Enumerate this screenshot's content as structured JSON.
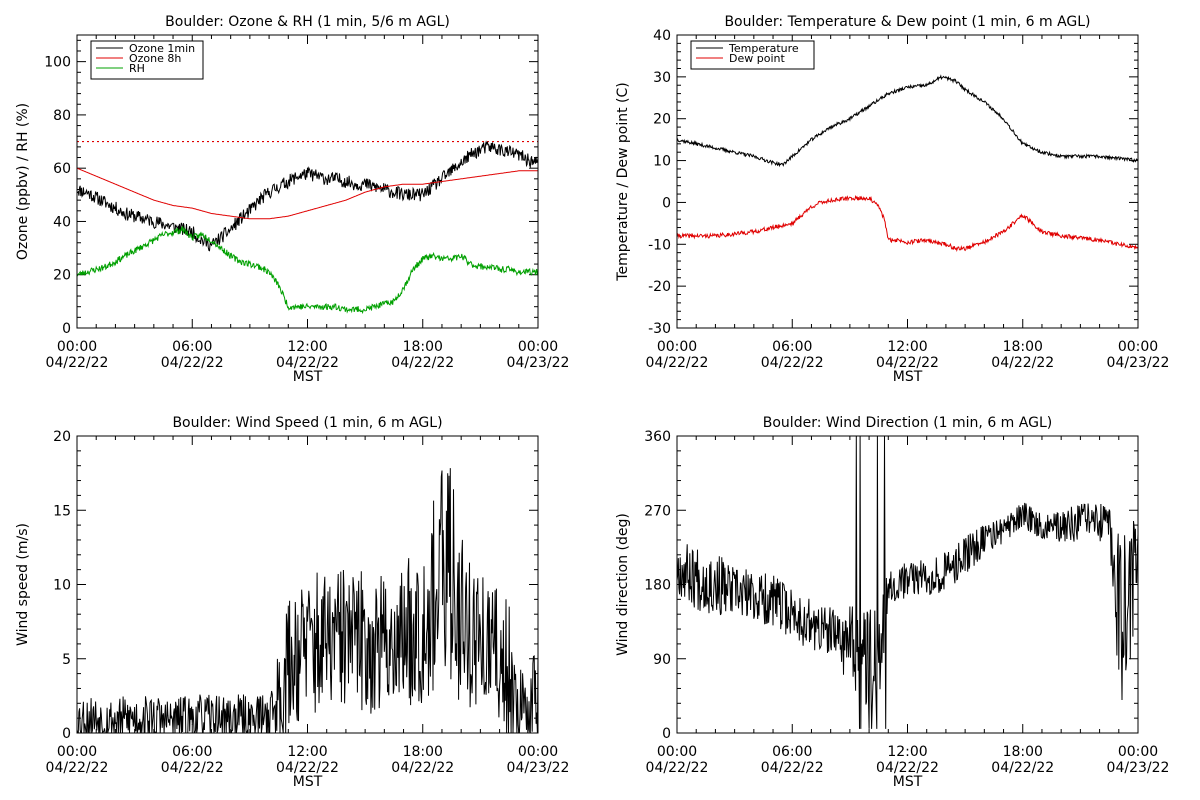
{
  "colors": {
    "black": "#000000",
    "red": "#e00000",
    "green": "#00a000"
  },
  "chart_data": [
    {
      "type": "line",
      "title": "Boulder: Ozone & RH (1 min, 5/6 m AGL)",
      "xlabel": "MST",
      "ylabel": "Ozone (ppbv) / RH (%)",
      "xlim": [
        0,
        24
      ],
      "ylim": [
        0,
        110
      ],
      "yticks": [
        0,
        20,
        40,
        60,
        80,
        100
      ],
      "xticks": [
        {
          "t": 0,
          "time": "00:00",
          "date": "04/22/22"
        },
        {
          "t": 6,
          "time": "06:00",
          "date": "04/22/22"
        },
        {
          "t": 12,
          "time": "12:00",
          "date": "04/22/22"
        },
        {
          "t": 18,
          "time": "18:00",
          "date": "04/22/22"
        },
        {
          "t": 24,
          "time": "00:00",
          "date": "04/23/22"
        }
      ],
      "legend": "top-left",
      "reference_line": {
        "y": 70,
        "color": "#e00000",
        "style": "dotted"
      },
      "series": [
        {
          "name": "Ozone 1min",
          "color": "#000000",
          "noise": 2.5,
          "seed": 11,
          "x": [
            0,
            0.5,
            1,
            1.5,
            2,
            2.5,
            3,
            3.5,
            4,
            4.5,
            5,
            5.5,
            6,
            6.5,
            7,
            7.5,
            8,
            8.5,
            9,
            9.5,
            10,
            10.5,
            11,
            11.5,
            12,
            12.5,
            13,
            13.5,
            14,
            14.5,
            15,
            15.5,
            16,
            16.5,
            17,
            17.5,
            18,
            18.5,
            19,
            19.5,
            20,
            20.5,
            21,
            21.5,
            22,
            22.5,
            23,
            23.5,
            24
          ],
          "y": [
            52,
            51,
            49,
            47,
            45,
            43,
            42,
            41,
            40,
            39,
            38,
            37,
            36,
            33,
            31,
            34,
            37,
            41,
            44,
            48,
            51,
            53,
            55,
            57,
            58,
            57,
            56,
            56,
            55,
            54,
            54,
            53,
            52,
            51,
            50,
            50,
            50,
            53,
            56,
            59,
            62,
            65,
            67,
            68,
            67,
            66,
            65,
            63,
            62
          ]
        },
        {
          "name": "Ozone 8h",
          "color": "#e00000",
          "noise": 0,
          "seed": 0,
          "x": [
            0,
            1,
            2,
            3,
            4,
            5,
            6,
            7,
            8,
            9,
            10,
            11,
            12,
            13,
            14,
            15,
            16,
            17,
            18,
            19,
            20,
            21,
            22,
            23,
            24
          ],
          "y": [
            60,
            57,
            54,
            51,
            48,
            46,
            45,
            43,
            42,
            41,
            41,
            42,
            44,
            46,
            48,
            51,
            53,
            54,
            54,
            55,
            56,
            57,
            58,
            59,
            59
          ]
        },
        {
          "name": "RH",
          "color": "#00a000",
          "noise": 1.2,
          "seed": 23,
          "x": [
            0,
            0.5,
            1,
            1.5,
            2,
            2.5,
            3,
            3.5,
            4,
            4.5,
            5,
            5.5,
            6,
            6.5,
            7,
            7.5,
            8,
            8.5,
            9,
            9.5,
            10,
            10.5,
            11,
            11.5,
            12,
            12.5,
            13,
            13.5,
            14,
            14.5,
            15,
            15.5,
            16,
            16.5,
            17,
            17.5,
            18,
            18.5,
            19,
            19.5,
            20,
            20.5,
            21,
            21.5,
            22,
            22.5,
            23,
            23.5,
            24
          ],
          "y": [
            20,
            21,
            22,
            23,
            25,
            27,
            29,
            31,
            33,
            35,
            36,
            37,
            34,
            35,
            33,
            30,
            27,
            25,
            24,
            23,
            21,
            16,
            8,
            8,
            8,
            8,
            8,
            8,
            7,
            7,
            7,
            8,
            9,
            10,
            15,
            22,
            26,
            27,
            26,
            26,
            27,
            24,
            23,
            23,
            22,
            22,
            21,
            21,
            21
          ]
        }
      ]
    },
    {
      "type": "line",
      "title": "Boulder: Temperature & Dew point (1 min, 6 m AGL)",
      "xlabel": "MST",
      "ylabel": "Temperature / Dew point (C)",
      "xlim": [
        0,
        24
      ],
      "ylim": [
        -30,
        40
      ],
      "yticks": [
        -30,
        -20,
        -10,
        0,
        10,
        20,
        30,
        40
      ],
      "xticks": [
        {
          "t": 0,
          "time": "00:00",
          "date": "04/22/22"
        },
        {
          "t": 6,
          "time": "06:00",
          "date": "04/22/22"
        },
        {
          "t": 12,
          "time": "12:00",
          "date": "04/22/22"
        },
        {
          "t": 18,
          "time": "18:00",
          "date": "04/22/22"
        },
        {
          "t": 24,
          "time": "00:00",
          "date": "04/23/22"
        }
      ],
      "legend": "top-left",
      "series": [
        {
          "name": "Temperature",
          "color": "#000000",
          "noise": 0.4,
          "seed": 37,
          "x": [
            0,
            1,
            2,
            3,
            4,
            5,
            5.5,
            6,
            7,
            8,
            9,
            10,
            11,
            12,
            13,
            13.8,
            14.5,
            15,
            16,
            17,
            18,
            19,
            20,
            21,
            22,
            23,
            24
          ],
          "y": [
            15,
            14,
            13,
            12,
            11,
            9.5,
            9,
            11,
            15,
            18,
            20,
            23,
            26,
            27.5,
            28,
            30,
            29,
            27,
            24,
            20,
            14,
            12,
            11,
            11,
            11,
            10.5,
            10
          ]
        },
        {
          "name": "Dew point",
          "color": "#e00000",
          "noise": 0.5,
          "seed": 41,
          "x": [
            0,
            1,
            2,
            3,
            4,
            5,
            6,
            6.5,
            7,
            7.5,
            8,
            9,
            10,
            10.5,
            10.8,
            11,
            11.5,
            12,
            13,
            14,
            14.5,
            15,
            16,
            17,
            17.5,
            18,
            19,
            20,
            21,
            22,
            23,
            24
          ],
          "y": [
            -8,
            -8,
            -8,
            -7.5,
            -7,
            -6,
            -5,
            -3,
            -1,
            0,
            0.5,
            1,
            1,
            -1,
            -4,
            -9,
            -9,
            -9.5,
            -9,
            -10,
            -11,
            -11,
            -9.5,
            -7,
            -5,
            -3,
            -7,
            -8,
            -8.5,
            -9,
            -10,
            -11
          ]
        }
      ]
    },
    {
      "type": "line",
      "title": "Boulder: Wind Speed (1 min, 6 m AGL)",
      "xlabel": "MST",
      "ylabel": "Wind speed (m/s)",
      "xlim": [
        0,
        24
      ],
      "ylim": [
        0,
        20
      ],
      "yticks": [
        0,
        5,
        10,
        15,
        20
      ],
      "xticks": [
        {
          "t": 0,
          "time": "00:00",
          "date": "04/22/22"
        },
        {
          "t": 6,
          "time": "06:00",
          "date": "04/22/22"
        },
        {
          "t": 12,
          "time": "12:00",
          "date": "04/22/22"
        },
        {
          "t": 18,
          "time": "18:00",
          "date": "04/22/22"
        },
        {
          "t": 24,
          "time": "00:00",
          "date": "04/23/22"
        }
      ],
      "legend": "none",
      "series": [
        {
          "name": "",
          "color": "#000000",
          "noise": 0,
          "seed": 53,
          "x": [
            0,
            1,
            2,
            3,
            4,
            5,
            6,
            7,
            8,
            9,
            10,
            10.5,
            11,
            11.5,
            12,
            13,
            14,
            15,
            16,
            17,
            18,
            18.5,
            19,
            19.5,
            20,
            21,
            22,
            22.5,
            23,
            23.5,
            24
          ],
          "y": [
            1,
            1,
            0.8,
            1,
            1,
            0.8,
            1,
            1,
            1,
            1,
            1.2,
            2.5,
            4.5,
            5.5,
            6,
            6,
            6.5,
            6,
            6,
            6.5,
            8,
            9,
            10,
            11,
            8,
            6,
            5,
            4,
            2,
            1,
            4
          ],
          "band": [
            1,
            1,
            1,
            1,
            1,
            1,
            1,
            1,
            1,
            1,
            1,
            2,
            3,
            3,
            3,
            3,
            3,
            3,
            3,
            3,
            4,
            4,
            5,
            5,
            4,
            3,
            3,
            3,
            2,
            1,
            3
          ]
        }
      ]
    },
    {
      "type": "line",
      "title": "Boulder: Wind Direction (1 min, 6 m AGL)",
      "xlabel": "MST",
      "ylabel": "Wind direction (deg)",
      "xlim": [
        0,
        24
      ],
      "ylim": [
        0,
        360
      ],
      "yticks": [
        0,
        90,
        180,
        270,
        360
      ],
      "xticks": [
        {
          "t": 0,
          "time": "00:00",
          "date": "04/22/22"
        },
        {
          "t": 6,
          "time": "06:00",
          "date": "04/22/22"
        },
        {
          "t": 12,
          "time": "12:00",
          "date": "04/22/22"
        },
        {
          "t": 18,
          "time": "18:00",
          "date": "04/22/22"
        },
        {
          "t": 24,
          "time": "00:00",
          "date": "04/23/22"
        }
      ],
      "legend": "none",
      "series": [
        {
          "name": "",
          "color": "#000000",
          "noise": 0,
          "seed": 67,
          "x": [
            0,
            1,
            2,
            3,
            4,
            5,
            6,
            7,
            8,
            9,
            9.5,
            10,
            10.5,
            11,
            12,
            13,
            14,
            15,
            16,
            17,
            18,
            19,
            20,
            21,
            22,
            22.5,
            23,
            23.5,
            24
          ],
          "y": [
            200,
            190,
            180,
            170,
            165,
            160,
            145,
            130,
            120,
            110,
            90,
            100,
            90,
            180,
            185,
            190,
            195,
            215,
            235,
            245,
            265,
            250,
            250,
            255,
            255,
            250,
            150,
            140,
            240
          ],
          "band": [
            20,
            25,
            25,
            20,
            20,
            20,
            20,
            20,
            20,
            30,
            40,
            40,
            40,
            15,
            15,
            15,
            15,
            15,
            12,
            10,
            10,
            10,
            12,
            15,
            15,
            15,
            60,
            60,
            30
          ]
        }
      ]
    }
  ]
}
